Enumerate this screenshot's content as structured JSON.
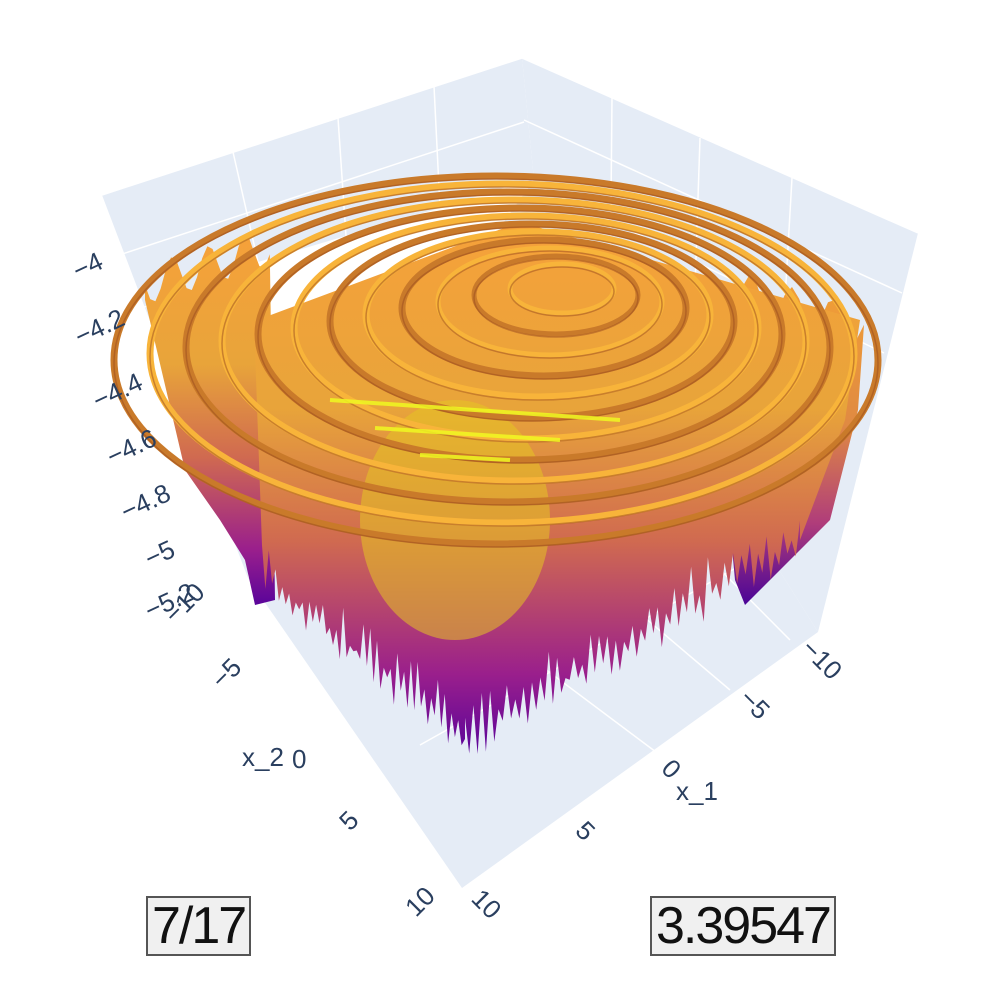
{
  "chart_data": {
    "type": "surface3d",
    "title": "",
    "colorscale": [
      "#0d0887",
      "#7e03a8",
      "#cc4778",
      "#f89540",
      "#f0f921"
    ],
    "x_axis": {
      "label": "x_1",
      "range": [
        -10,
        10
      ],
      "ticks": [
        "−10",
        "−5",
        "0",
        "5",
        "10"
      ]
    },
    "y_axis": {
      "label": "x_2",
      "range": [
        -10,
        10
      ],
      "ticks": [
        "−10",
        "−5",
        "0",
        "5",
        "10"
      ]
    },
    "z_axis": {
      "label": "",
      "range": [
        -5.2,
        -4.0
      ],
      "ticks": [
        "−4",
        "−4.2",
        "−4.4",
        "−4.6",
        "−4.8",
        "−5",
        "−5.2"
      ]
    },
    "surface": {
      "function": "concentric ripples centred near x_1 = -4, x_2 = -4 with sharp downward spikes",
      "z_min": -5.2,
      "z_max": -4.0
    },
    "grid": true
  },
  "labels": {
    "counter": "7/17",
    "value": "3.39547"
  }
}
